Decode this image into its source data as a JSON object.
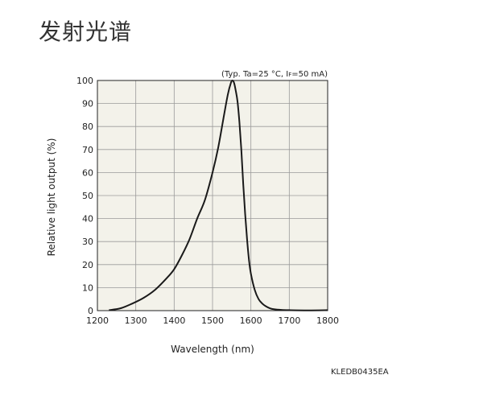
{
  "page": {
    "title": "发射光谱",
    "document_code": "KLEDB0435EA"
  },
  "chart_data": {
    "type": "line",
    "title": "",
    "condition_note_prefix": "(Typ. Ta=25 °C, I",
    "condition_note_sub": "F",
    "condition_note_suffix": "=50 mA)",
    "xlabel": "Wavelength (nm)",
    "ylabel": "Relative light output (%)",
    "xlim": [
      1200,
      1800
    ],
    "ylim": [
      0,
      100
    ],
    "x_ticks": [
      1200,
      1300,
      1400,
      1500,
      1600,
      1700,
      1800
    ],
    "y_ticks": [
      0,
      10,
      20,
      30,
      40,
      50,
      60,
      70,
      80,
      90,
      100
    ],
    "x_tick_labels": [
      "1200",
      "1300",
      "1400",
      "1500",
      "1600",
      "1700",
      "1800"
    ],
    "y_tick_labels": [
      "0",
      "10",
      "20",
      "30",
      "40",
      "50",
      "60",
      "70",
      "80",
      "90",
      "100"
    ],
    "grid": true,
    "plot_background": "#f3f2ea",
    "line_color": "#1a1a1a",
    "series": [
      {
        "x": [
          1230,
          1260,
          1290,
          1320,
          1350,
          1380,
          1400,
          1420,
          1440,
          1460,
          1480,
          1500,
          1515,
          1530,
          1540,
          1548,
          1552,
          1556,
          1560,
          1565,
          1570,
          1575,
          1580,
          1585,
          1590,
          1595,
          1600,
          1610,
          1620,
          1630,
          1640,
          1650,
          1660,
          1680,
          1700,
          1750,
          1800
        ],
        "y": [
          0.2,
          1,
          3,
          5.5,
          9,
          14,
          18,
          24,
          31,
          40,
          48,
          60,
          71,
          85,
          94,
          99,
          100,
          99,
          96,
          91,
          82,
          70,
          55,
          42,
          31,
          22,
          16,
          9,
          5,
          3,
          1.8,
          1.0,
          0.6,
          0.3,
          0.2,
          0.1,
          0.2
        ]
      }
    ]
  }
}
